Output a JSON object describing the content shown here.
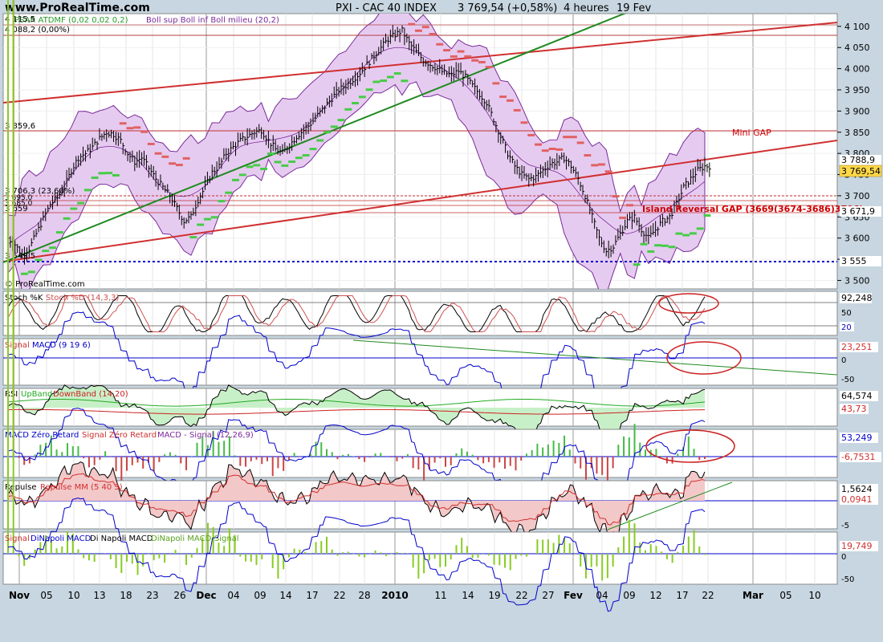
{
  "header": {
    "site": "www.ProRealTime.com",
    "title": "PXI - CAC 40 INDEX",
    "price": "3 769,54 (+0,58%)",
    "period": "4 heures",
    "date": "19 Fev"
  },
  "colors": {
    "background": "#c7d6e0",
    "panel": "#ffffff",
    "red": "#d03030",
    "green": "#1f8a1f",
    "blue": "#0000cc",
    "boll_fill": "#e6cbf0",
    "boll_line": "#7a2a9a",
    "sar_red": "#e06060",
    "sar_green": "#44cc44",
    "annotation": "#cc0000"
  },
  "time_axis": {
    "labels": [
      {
        "label": "Nov",
        "bold": true
      },
      {
        "label": "05"
      },
      {
        "label": "10"
      },
      {
        "label": "13"
      },
      {
        "label": "18"
      },
      {
        "label": "23"
      },
      {
        "label": "26"
      },
      {
        "label": "Dec",
        "bold": true
      },
      {
        "label": "04"
      },
      {
        "label": "09"
      },
      {
        "label": "14"
      },
      {
        "label": "17"
      },
      {
        "label": "22"
      },
      {
        "label": "28"
      },
      {
        "label": "2010",
        "bold": true
      },
      {
        "label": "11"
      },
      {
        "label": "14"
      },
      {
        "label": "19"
      },
      {
        "label": "22"
      },
      {
        "label": "27"
      },
      {
        "label": "Fev",
        "bold": true
      },
      {
        "label": "04"
      },
      {
        "label": "09"
      },
      {
        "label": "12"
      },
      {
        "label": "17"
      },
      {
        "label": "22"
      },
      {
        "label": "Mar",
        "bold": true
      },
      {
        "label": "05"
      },
      {
        "label": "10"
      }
    ]
  },
  "price_panel": {
    "legend": "PSAR ATDMF (0,02 0,02 0,2)",
    "legend2": "Boll sup Boll inf Boll milieu (20,2)",
    "top_value": "4 115,5",
    "level_4088": "4 088,2 (0,00%)",
    "level_3859": "3 859,6",
    "level_3706": "3 706,3 (23,60%)",
    "level_3659": "3 659",
    "level_3549": "3 549,5",
    "overlap_labels": [
      "3 695,0",
      "3 685,0"
    ],
    "copyright": "© ProRealTime.com",
    "y_ticks": [
      "4 100",
      "4 050",
      "4 000",
      "3 950",
      "3 900",
      "3 850",
      "3 800",
      "3 750",
      "3 700",
      "3 650",
      "3 600",
      "3 550",
      "3 500"
    ],
    "ylim": [
      3480,
      4130
    ],
    "right_labels": {
      "r1": "3 788,9",
      "r2": "3 769,54",
      "r3": "3 671,9",
      "r4": "3 555"
    },
    "annotations": {
      "mini_gap": "Mini GAP",
      "island": "Island Reversal GAP (3669(3674-3686)3706)"
    },
    "close_series": [
      3600,
      3585,
      3560,
      3575,
      3610,
      3645,
      3680,
      3695,
      3720,
      3760,
      3790,
      3800,
      3815,
      3835,
      3850,
      3845,
      3830,
      3800,
      3780,
      3790,
      3765,
      3740,
      3720,
      3700,
      3670,
      3640,
      3650,
      3690,
      3720,
      3755,
      3770,
      3800,
      3815,
      3830,
      3840,
      3850,
      3855,
      3830,
      3810,
      3800,
      3820,
      3840,
      3855,
      3870,
      3890,
      3910,
      3930,
      3950,
      3960,
      3975,
      3990,
      4010,
      4030,
      4050,
      4070,
      4080,
      4090,
      4060,
      4040,
      4020,
      4010,
      4000,
      3990,
      3985,
      3995,
      3980,
      3960,
      3940,
      3920,
      3880,
      3840,
      3800,
      3770,
      3750,
      3740,
      3745,
      3760,
      3775,
      3780,
      3790,
      3770,
      3740,
      3700,
      3650,
      3600,
      3570,
      3580,
      3610,
      3640,
      3650,
      3620,
      3600,
      3620,
      3640,
      3650,
      3680,
      3720,
      3740,
      3760,
      3770
    ]
  },
  "panels": [
    {
      "id": "stoch",
      "legend_a": "Stoch %K",
      "legend_b": "Stoch %D (14,3,3)",
      "v1": "92,248",
      "v2": "50",
      "v3": "20",
      "ticks": [
        "50"
      ]
    },
    {
      "id": "macd",
      "legend_a": "Signal",
      "legend_b": "MACD (9 19 6)",
      "v1": "23,251",
      "v2": "0",
      "ticks": [
        "0",
        "-50"
      ]
    },
    {
      "id": "rsi",
      "legend_a": "RSI",
      "legend_b": "UpBand",
      "legend_c": "DownBand (14,20)",
      "v1": "64,574",
      "v2": "43,73",
      "ticks": []
    },
    {
      "id": "macdzr",
      "legend_a": "MACD Zéro Retard",
      "legend_b": "Signal Zéro Retard",
      "legend_c": "MACD - Signal (12,26,9)",
      "v1": "53,249",
      "v2": "-6,7531",
      "ticks": []
    },
    {
      "id": "repulse",
      "legend_a": "Repulse",
      "legend_b": "Repulse MM (5 40 3)",
      "v1": "1,5624",
      "v2": "0,0941",
      "ticks": [
        "-5"
      ]
    },
    {
      "id": "dinapoli",
      "legend_a": "Signal",
      "legend_b": "DiNapoli MACD",
      "legend_c": "Di Napoli MACD",
      "legend_d": "DiNapoli MACD-Signal",
      "v1": "19,749",
      "ticks": [
        "0",
        "-50"
      ]
    }
  ]
}
